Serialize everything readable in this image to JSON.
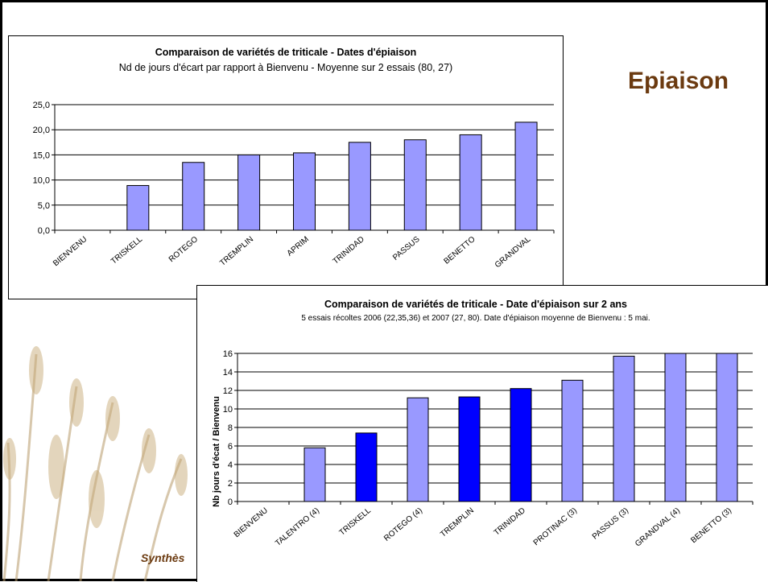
{
  "slide": {
    "heading": "Epiaison",
    "footer": "Synthès"
  },
  "colors": {
    "bar_light": "#9999ff",
    "bar_dark": "#0000ff",
    "heading": "#6b3a10"
  },
  "chart_data": [
    {
      "type": "bar",
      "title": "Comparaison de variétés de triticale - Dates d'épiaison",
      "subtitle": "Nd de jours d'écart par rapport à Bienvenu - Moyenne sur 2 essais (80, 27)",
      "xlabel": "",
      "ylabel": "",
      "categories": [
        "BIENVENU",
        "TRISKELL",
        "ROTEGO",
        "TREMPLIN",
        "APRIM",
        "TRINIDAD",
        "PASSUS",
        "BENETTO",
        "GRANDVAL"
      ],
      "values": [
        0,
        8.9,
        13.5,
        15.0,
        15.4,
        17.5,
        18.0,
        19.0,
        21.5
      ],
      "ylim": [
        0,
        25
      ],
      "yticks": [
        "0,0",
        "5,0",
        "10,0",
        "15,0",
        "20,0",
        "25,0"
      ],
      "grid": true,
      "legend": "none"
    },
    {
      "type": "bar",
      "title": "Comparaison de variétés de triticale - Date d'épiaison sur 2 ans",
      "subtitle": "5 essais récoltes 2006 (22,35,36) et 2007 (27, 80). Date d'épiaison moyenne de Bienvenu : 5 mai.",
      "xlabel": "",
      "ylabel": "Nb jours d'écat / Bienvenu",
      "categories": [
        "BIENVENU",
        "TALENTRO (4)",
        "TRISKELL",
        "ROTEGO (4)",
        "TREMPLIN",
        "TRINIDAD",
        "PROTINAC (3)",
        "PASSUS (3)",
        "GRANDVAL (4)",
        "BENETTO (3)"
      ],
      "values": [
        0,
        5.8,
        7.4,
        11.2,
        11.3,
        12.2,
        13.1,
        15.7,
        16.0,
        16.2
      ],
      "highlight": [
        false,
        false,
        true,
        false,
        true,
        true,
        false,
        false,
        false,
        false
      ],
      "ylim": [
        0,
        16
      ],
      "yticks": [
        "0",
        "2",
        "4",
        "6",
        "8",
        "10",
        "12",
        "14",
        "16"
      ],
      "grid": true,
      "legend": "none"
    }
  ]
}
